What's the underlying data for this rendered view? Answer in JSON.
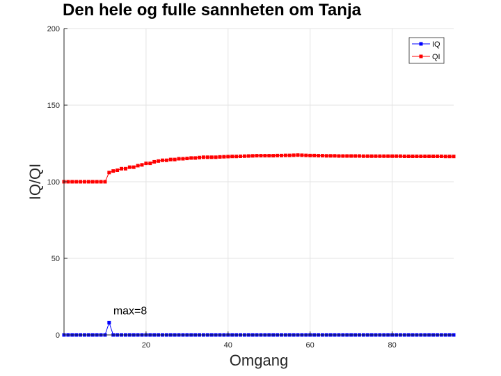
{
  "chart_data": {
    "type": "line",
    "title": "Den hele og fulle sannheten om Tanja",
    "xlabel": "Omgang",
    "ylabel": "IQ/QI",
    "xlim": [
      0,
      95
    ],
    "ylim": [
      0,
      200
    ],
    "xticks": [
      "20",
      "40",
      "60",
      "80"
    ],
    "xtick_values": [
      20,
      40,
      60,
      80
    ],
    "yticks": [
      "0",
      "50",
      "100",
      "150",
      "200"
    ],
    "ytick_values": [
      0,
      50,
      100,
      150,
      200
    ],
    "grid": true,
    "legend_position": "top-right",
    "annotation": {
      "text": "max=8",
      "x": 11,
      "y": 8
    },
    "series": [
      {
        "name": "IQ",
        "color": "#0000ff",
        "marker": "square",
        "x": [
          0,
          1,
          2,
          3,
          4,
          5,
          6,
          7,
          8,
          9,
          10,
          11,
          12,
          13,
          14,
          15,
          16,
          17,
          18,
          19,
          20,
          21,
          22,
          23,
          24,
          25,
          26,
          27,
          28,
          29,
          30,
          31,
          32,
          33,
          34,
          35,
          36,
          37,
          38,
          39,
          40,
          41,
          42,
          43,
          44,
          45,
          46,
          47,
          48,
          49,
          50,
          51,
          52,
          53,
          54,
          55,
          56,
          57,
          58,
          59,
          60,
          61,
          62,
          63,
          64,
          65,
          66,
          67,
          68,
          69,
          70,
          71,
          72,
          73,
          74,
          75,
          76,
          77,
          78,
          79,
          80,
          81,
          82,
          83,
          84,
          85,
          86,
          87,
          88,
          89,
          90,
          91,
          92,
          93,
          94,
          95
        ],
        "values": [
          0,
          0,
          0,
          0,
          0,
          0,
          0,
          0,
          0,
          0,
          0,
          8,
          0,
          0,
          0,
          0,
          0,
          0,
          0,
          0,
          0,
          0,
          0,
          0,
          0,
          0,
          0,
          0,
          0,
          0,
          0,
          0,
          0,
          0,
          0,
          0,
          0,
          0,
          0,
          0,
          0,
          0,
          0,
          0,
          0,
          0,
          0,
          0,
          0,
          0,
          0,
          0,
          0,
          0,
          0,
          0,
          0,
          0,
          0,
          0,
          0,
          0,
          0,
          0,
          0,
          0,
          0,
          0,
          0,
          0,
          0,
          0,
          0,
          0,
          0,
          0,
          0,
          0,
          0,
          0,
          0,
          0,
          0,
          0,
          0,
          0,
          0,
          0,
          0,
          0,
          0,
          0,
          0,
          0,
          0,
          0
        ]
      },
      {
        "name": "QI",
        "color": "#ff0000",
        "marker": "square",
        "x": [
          0,
          1,
          2,
          3,
          4,
          5,
          6,
          7,
          8,
          9,
          10,
          11,
          12,
          13,
          14,
          15,
          16,
          17,
          18,
          19,
          20,
          21,
          22,
          23,
          24,
          25,
          26,
          27,
          28,
          29,
          30,
          31,
          32,
          33,
          34,
          35,
          36,
          37,
          38,
          39,
          40,
          41,
          42,
          43,
          44,
          45,
          46,
          47,
          48,
          49,
          50,
          51,
          52,
          53,
          54,
          55,
          56,
          57,
          58,
          59,
          60,
          61,
          62,
          63,
          64,
          65,
          66,
          67,
          68,
          69,
          70,
          71,
          72,
          73,
          74,
          75,
          76,
          77,
          78,
          79,
          80,
          81,
          82,
          83,
          84,
          85,
          86,
          87,
          88,
          89,
          90,
          91,
          92,
          93,
          94,
          95
        ],
        "values": [
          100,
          100,
          100,
          100,
          100,
          100,
          100,
          100,
          100,
          100,
          100,
          106,
          107,
          107.5,
          108.5,
          108.5,
          109.5,
          109.5,
          110.5,
          111,
          112,
          112,
          113,
          113.5,
          114,
          114,
          114.5,
          114.5,
          115,
          115,
          115.2,
          115.5,
          115.5,
          115.8,
          116,
          116,
          116,
          116,
          116.2,
          116.3,
          116.4,
          116.5,
          116.5,
          116.6,
          116.7,
          116.8,
          116.9,
          117,
          117,
          117,
          117,
          117,
          117.1,
          117.1,
          117.2,
          117.2,
          117.3,
          117.4,
          117.3,
          117.2,
          117.1,
          117.1,
          117,
          117,
          116.9,
          116.9,
          116.9,
          116.8,
          116.8,
          116.8,
          116.8,
          116.8,
          116.8,
          116.7,
          116.7,
          116.7,
          116.7,
          116.7,
          116.7,
          116.7,
          116.7,
          116.7,
          116.7,
          116.6,
          116.6,
          116.6,
          116.6,
          116.6,
          116.6,
          116.6,
          116.6,
          116.6,
          116.6,
          116.5,
          116.5,
          116.5
        ]
      }
    ]
  }
}
